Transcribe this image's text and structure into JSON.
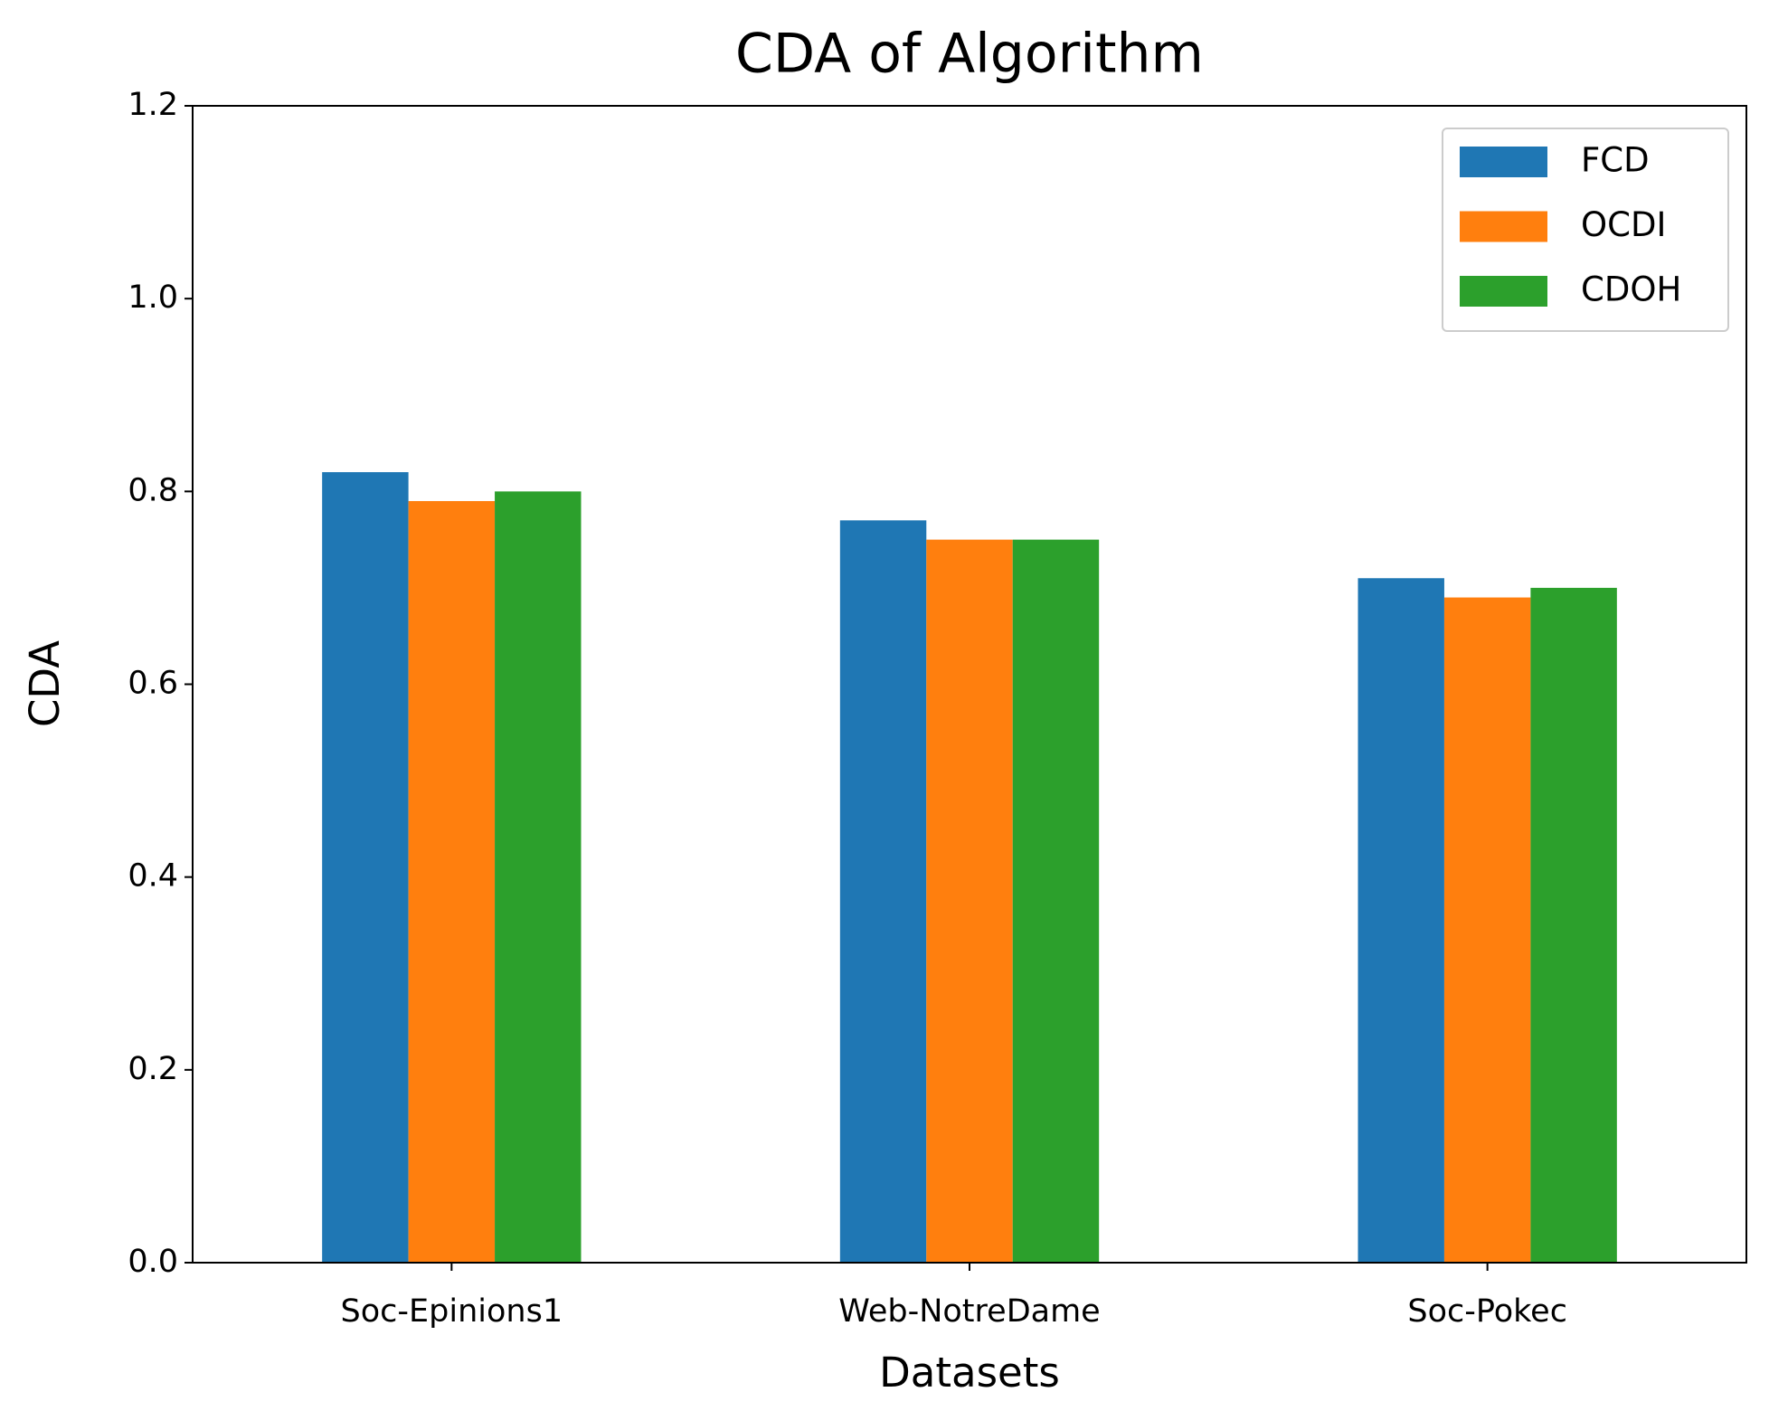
{
  "chart_data": {
    "type": "bar",
    "title": "CDA of Algorithm",
    "x_label": "Datasets",
    "y_label": "CDA",
    "categories": [
      "Soc-Epinions1",
      "Web-NotreDame",
      "Soc-Pokec"
    ],
    "series": [
      {
        "name": "FCD",
        "color": "#1f77b4",
        "values": [
          0.82,
          0.77,
          0.71
        ]
      },
      {
        "name": "OCDI",
        "color": "#ff7f0e",
        "values": [
          0.79,
          0.75,
          0.69
        ]
      },
      {
        "name": "CDOH",
        "color": "#2ca02c",
        "values": [
          0.8,
          0.75,
          0.7
        ]
      }
    ],
    "ylim": [
      0,
      1.2
    ],
    "yticks": [
      {
        "value": 0,
        "label": "0.0"
      },
      0.2,
      0.4,
      0.6,
      0.8,
      {
        "value": 1,
        "label": "1.0"
      },
      1.2
    ],
    "grid": false,
    "legend": "upper right"
  }
}
